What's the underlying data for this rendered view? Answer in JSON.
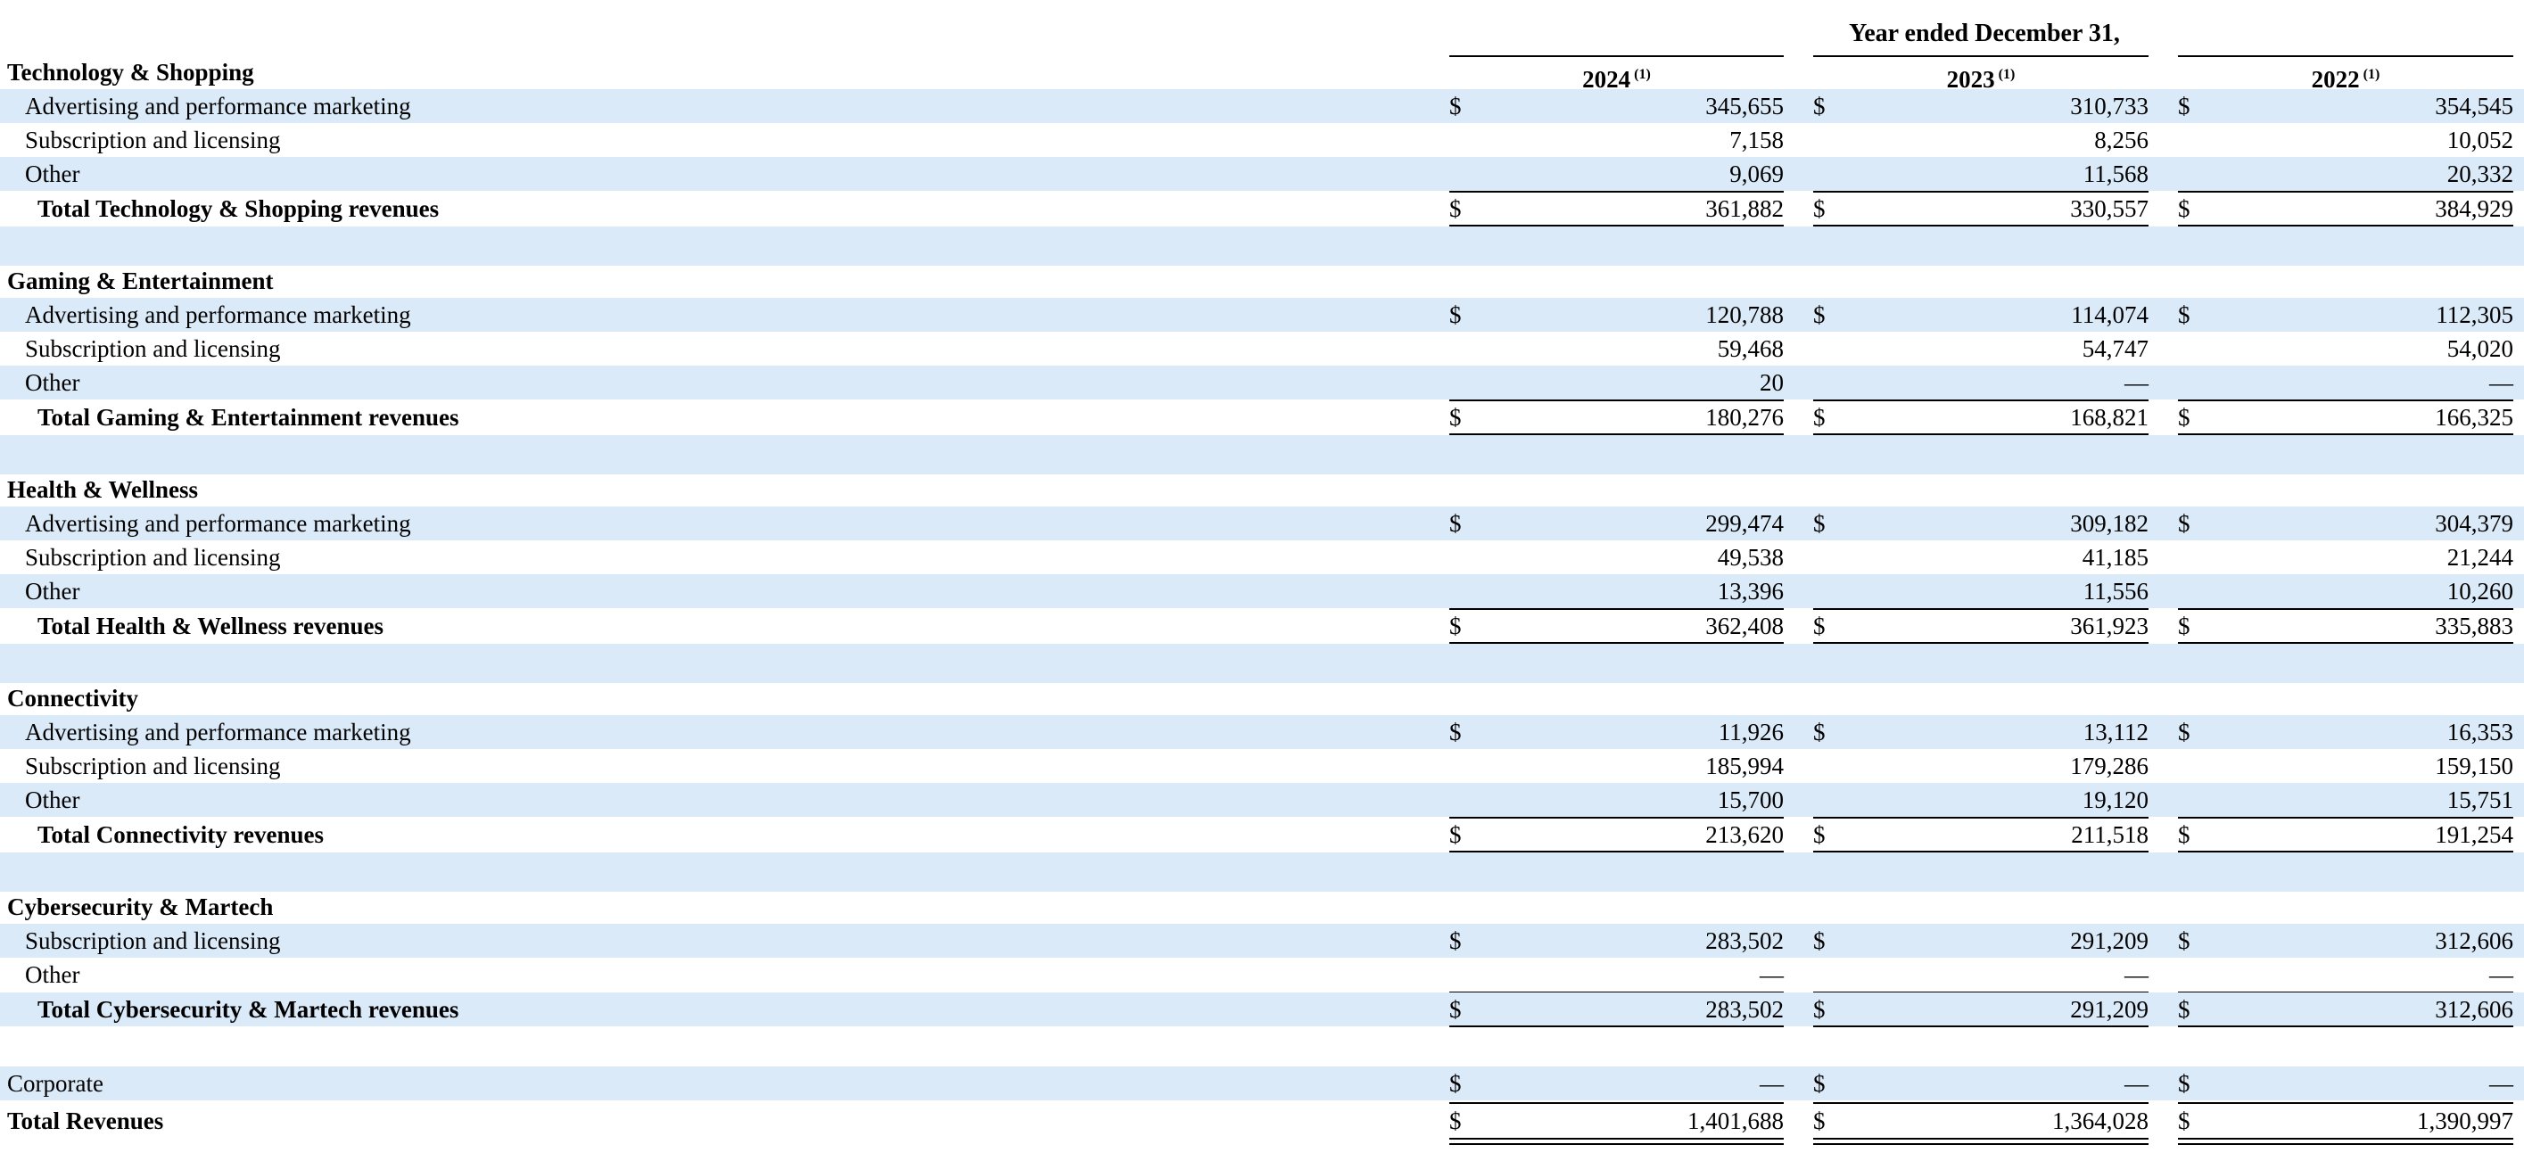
{
  "header": {
    "period_title": "Year ended December 31,",
    "years": [
      {
        "year": "2024",
        "note": "(1)"
      },
      {
        "year": "2023",
        "note": "(1)"
      },
      {
        "year": "2022",
        "note": "(1)"
      }
    ]
  },
  "currency_symbol": "$",
  "sections": [
    {
      "title": "Technology & Shopping",
      "items": [
        {
          "label": "Advertising and performance marketing",
          "values": [
            "345,655",
            "310,733",
            "354,545"
          ],
          "dollar": true
        },
        {
          "label": "Subscription and licensing",
          "values": [
            "7,158",
            "8,256",
            "10,052"
          ],
          "dollar": false
        },
        {
          "label": "Other",
          "values": [
            "9,069",
            "11,568",
            "20,332"
          ],
          "dollar": false
        }
      ],
      "total": {
        "label": "Total Technology & Shopping revenues",
        "values": [
          "361,882",
          "330,557",
          "384,929"
        ]
      }
    },
    {
      "title": "Gaming & Entertainment",
      "items": [
        {
          "label": "Advertising and performance marketing",
          "values": [
            "120,788",
            "114,074",
            "112,305"
          ],
          "dollar": true
        },
        {
          "label": "Subscription and licensing",
          "values": [
            "59,468",
            "54,747",
            "54,020"
          ],
          "dollar": false
        },
        {
          "label": "Other",
          "values": [
            "20",
            "—",
            "—"
          ],
          "dollar": false
        }
      ],
      "total": {
        "label": "Total Gaming & Entertainment revenues",
        "values": [
          "180,276",
          "168,821",
          "166,325"
        ]
      }
    },
    {
      "title": "Health & Wellness",
      "items": [
        {
          "label": "Advertising and performance marketing",
          "values": [
            "299,474",
            "309,182",
            "304,379"
          ],
          "dollar": true
        },
        {
          "label": "Subscription and licensing",
          "values": [
            "49,538",
            "41,185",
            "21,244"
          ],
          "dollar": false
        },
        {
          "label": "Other",
          "values": [
            "13,396",
            "11,556",
            "10,260"
          ],
          "dollar": false
        }
      ],
      "total": {
        "label": "Total Health & Wellness revenues",
        "values": [
          "362,408",
          "361,923",
          "335,883"
        ]
      }
    },
    {
      "title": "Connectivity",
      "items": [
        {
          "label": "Advertising and performance marketing",
          "values": [
            "11,926",
            "13,112",
            "16,353"
          ],
          "dollar": true
        },
        {
          "label": "Subscription and licensing",
          "values": [
            "185,994",
            "179,286",
            "159,150"
          ],
          "dollar": false
        },
        {
          "label": "Other",
          "values": [
            "15,700",
            "19,120",
            "15,751"
          ],
          "dollar": false
        }
      ],
      "total": {
        "label": "Total Connectivity revenues",
        "values": [
          "213,620",
          "211,518",
          "191,254"
        ]
      }
    },
    {
      "title": "Cybersecurity & Martech",
      "items": [
        {
          "label": "Subscription and licensing",
          "values": [
            "283,502",
            "291,209",
            "312,606"
          ],
          "dollar": true
        },
        {
          "label": "Other",
          "values": [
            "—",
            "—",
            "—"
          ],
          "dollar": false
        }
      ],
      "total": {
        "label": "Total Cybersecurity & Martech revenues",
        "values": [
          "283,502",
          "291,209",
          "312,606"
        ]
      }
    }
  ],
  "corporate": {
    "label": "Corporate",
    "values": [
      "—",
      "—",
      "—"
    ]
  },
  "grand_total": {
    "label": "Total Revenues",
    "values": [
      "1,401,688",
      "1,364,028",
      "1,390,997"
    ]
  }
}
